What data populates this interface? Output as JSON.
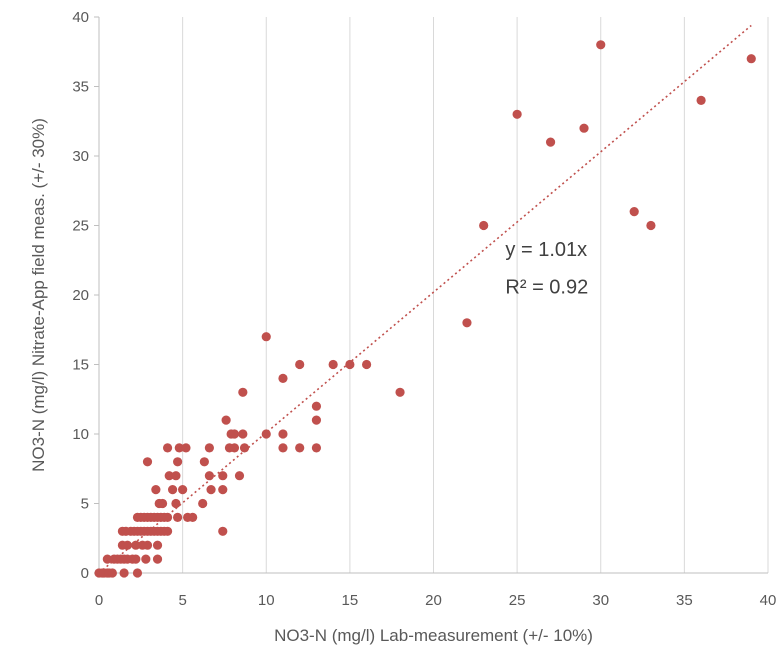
{
  "chart_data": {
    "type": "scatter",
    "xlabel": "NO3-N (mg/l) Lab-measurement  (+/- 10%)",
    "ylabel": "NO3-N (mg/l) Nitrate-App field meas. (+/- 30%)",
    "xlim": [
      0,
      40
    ],
    "ylim": [
      0,
      40
    ],
    "xticks": [
      0,
      5,
      10,
      15,
      20,
      25,
      30,
      35,
      40
    ],
    "yticks": [
      0,
      5,
      10,
      15,
      20,
      25,
      30,
      35,
      40
    ],
    "grid": "vertical",
    "marker_color": "#c0504d",
    "trendline": {
      "type": "linear-through-origin",
      "slope": 1.01,
      "equation_label": "y = 1.01x",
      "r2_label": "R² = 0.92",
      "color": "#c0504d",
      "style": "dotted"
    },
    "series": [
      {
        "points": [
          [
            0,
            0
          ],
          [
            0.2,
            0
          ],
          [
            0.3,
            0
          ],
          [
            0.5,
            0
          ],
          [
            0.6,
            0
          ],
          [
            0.8,
            0
          ],
          [
            1.5,
            0
          ],
          [
            2.3,
            0
          ],
          [
            0.5,
            1
          ],
          [
            0.9,
            1
          ],
          [
            1.1,
            1
          ],
          [
            1.3,
            1
          ],
          [
            1.5,
            1
          ],
          [
            1.7,
            1
          ],
          [
            2.0,
            1
          ],
          [
            2.2,
            1
          ],
          [
            2.8,
            1
          ],
          [
            3.5,
            1
          ],
          [
            1.4,
            2
          ],
          [
            1.7,
            2
          ],
          [
            2.2,
            2
          ],
          [
            2.6,
            2
          ],
          [
            2.9,
            2
          ],
          [
            3.5,
            2
          ],
          [
            1.4,
            3
          ],
          [
            1.6,
            3
          ],
          [
            1.9,
            3
          ],
          [
            2.1,
            3
          ],
          [
            2.3,
            3
          ],
          [
            2.5,
            3
          ],
          [
            2.7,
            3
          ],
          [
            2.9,
            3
          ],
          [
            3.1,
            3
          ],
          [
            3.3,
            3
          ],
          [
            3.5,
            3
          ],
          [
            3.7,
            3
          ],
          [
            3.9,
            3
          ],
          [
            4.1,
            3
          ],
          [
            7.4,
            3
          ],
          [
            2.3,
            4
          ],
          [
            2.5,
            4
          ],
          [
            2.7,
            4
          ],
          [
            2.9,
            4
          ],
          [
            3.1,
            4
          ],
          [
            3.3,
            4
          ],
          [
            3.5,
            4
          ],
          [
            3.7,
            4
          ],
          [
            3.9,
            4
          ],
          [
            4.1,
            4
          ],
          [
            4.7,
            4
          ],
          [
            5.3,
            4
          ],
          [
            5.6,
            4
          ],
          [
            3.6,
            5
          ],
          [
            3.8,
            5
          ],
          [
            4.6,
            5
          ],
          [
            6.2,
            5
          ],
          [
            3.4,
            6
          ],
          [
            4.4,
            6
          ],
          [
            5.0,
            6
          ],
          [
            6.7,
            6
          ],
          [
            7.4,
            6
          ],
          [
            4.2,
            7
          ],
          [
            4.6,
            7
          ],
          [
            6.6,
            7
          ],
          [
            7.4,
            7
          ],
          [
            8.4,
            7
          ],
          [
            2.9,
            8
          ],
          [
            4.7,
            8
          ],
          [
            6.3,
            8
          ],
          [
            4.1,
            9
          ],
          [
            4.8,
            9
          ],
          [
            5.2,
            9
          ],
          [
            6.6,
            9
          ],
          [
            7.8,
            9
          ],
          [
            8.1,
            9
          ],
          [
            8.7,
            9
          ],
          [
            11.0,
            9
          ],
          [
            12.0,
            9
          ],
          [
            13.0,
            9
          ],
          [
            7.9,
            10
          ],
          [
            8.1,
            10
          ],
          [
            8.6,
            10
          ],
          [
            10.0,
            10
          ],
          [
            11.0,
            10
          ],
          [
            7.6,
            11
          ],
          [
            13.0,
            11
          ],
          [
            13.0,
            12
          ],
          [
            8.6,
            13
          ],
          [
            18.0,
            13
          ],
          [
            11.0,
            14
          ],
          [
            12.0,
            15
          ],
          [
            14.0,
            15
          ],
          [
            15.0,
            15
          ],
          [
            16.0,
            15
          ],
          [
            10.0,
            17
          ],
          [
            22.0,
            18
          ],
          [
            23.0,
            25
          ],
          [
            33.0,
            25
          ],
          [
            32.0,
            26
          ],
          [
            27.0,
            31
          ],
          [
            29.0,
            32
          ],
          [
            25.0,
            33
          ],
          [
            36.0,
            34
          ],
          [
            39.0,
            37
          ],
          [
            30.0,
            38
          ]
        ]
      }
    ]
  }
}
